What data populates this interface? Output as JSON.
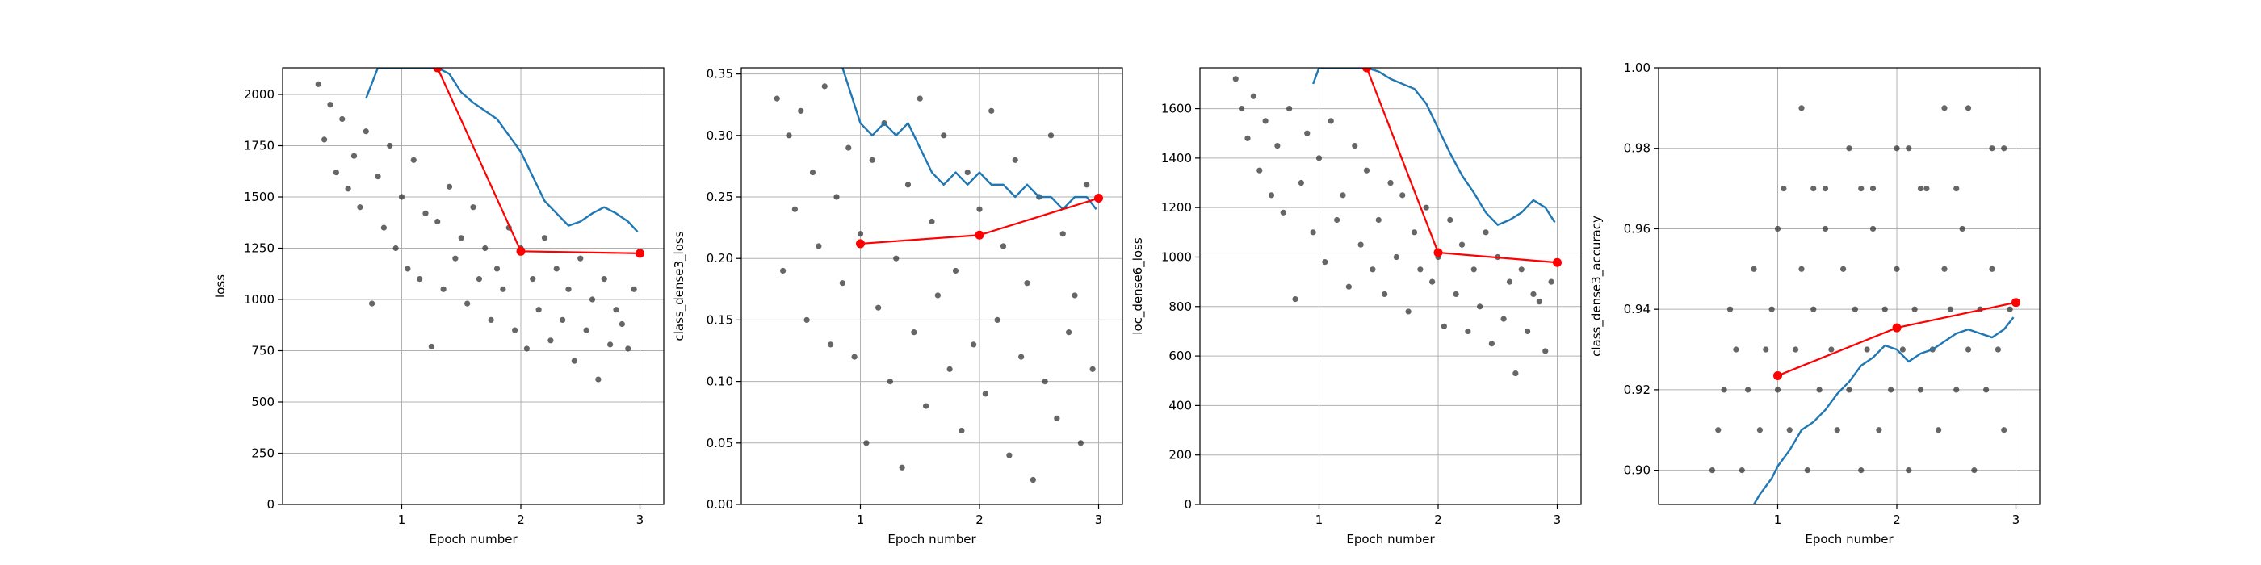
{
  "figure_title": "",
  "chart_data": [
    {
      "type": "scatter",
      "xlabel": "Epoch number",
      "ylabel": "loss",
      "xlim": [
        0,
        3.2
      ],
      "ylim": [
        0,
        2130
      ],
      "xticks": [
        "1",
        "2",
        "3"
      ],
      "yticks": [
        "0",
        "250",
        "500",
        "750",
        "1000",
        "1250",
        "1500",
        "1750",
        "2000"
      ],
      "grid": true,
      "series": [
        {
          "kind": "scatter",
          "description_color": "#404040",
          "x": [
            0.3,
            0.35,
            0.4,
            0.45,
            0.5,
            0.55,
            0.6,
            0.65,
            0.7,
            0.75,
            0.8,
            0.85,
            0.9,
            0.95,
            1.0,
            1.05,
            1.1,
            1.15,
            1.2,
            1.25,
            1.3,
            1.35,
            1.4,
            1.45,
            1.5,
            1.55,
            1.6,
            1.65,
            1.7,
            1.75,
            1.8,
            1.85,
            1.9,
            1.95,
            2.0,
            2.05,
            2.1,
            2.15,
            2.2,
            2.25,
            2.3,
            2.35,
            2.4,
            2.45,
            2.5,
            2.55,
            2.6,
            2.65,
            2.7,
            2.75,
            2.8,
            2.85,
            2.9,
            2.95
          ],
          "y": [
            2050,
            1780,
            1950,
            1620,
            1880,
            1540,
            1700,
            1450,
            1820,
            980,
            1600,
            1350,
            1750,
            1250,
            1500,
            1150,
            1680,
            1100,
            1420,
            770,
            1380,
            1050,
            1550,
            1200,
            1300,
            980,
            1450,
            1100,
            1250,
            900,
            1150,
            1050,
            1350,
            850,
            1250,
            760,
            1100,
            950,
            1300,
            800,
            1150,
            900,
            1050,
            700,
            1200,
            850,
            1000,
            610,
            1100,
            780,
            950,
            880,
            760,
            1050
          ]
        },
        {
          "kind": "line",
          "color": "#1f77b4",
          "x": [
            0.7,
            0.8,
            0.9,
            1.0,
            1.1,
            1.2,
            1.3,
            1.4,
            1.5,
            1.6,
            1.7,
            1.8,
            1.9,
            2.0,
            2.1,
            2.2,
            2.3,
            2.4,
            2.5,
            2.6,
            2.7,
            2.8,
            2.9,
            2.98
          ],
          "y": [
            1980,
            2130,
            2130,
            2130,
            2130,
            2130,
            2130,
            2100,
            2010,
            1960,
            1920,
            1880,
            1800,
            1720,
            1600,
            1480,
            1420,
            1360,
            1380,
            1420,
            1450,
            1420,
            1380,
            1330
          ]
        },
        {
          "kind": "line-markers",
          "color": "#ff0000",
          "x": [
            1.3,
            2.0,
            3.0
          ],
          "y": [
            2130,
            1235,
            1225
          ]
        }
      ]
    },
    {
      "type": "scatter",
      "xlabel": "Epoch number",
      "ylabel": "class_dense3_loss",
      "xlim": [
        0,
        3.2
      ],
      "ylim": [
        0,
        0.355
      ],
      "xticks": [
        "1",
        "2",
        "3"
      ],
      "yticks": [
        "0.00",
        "0.05",
        "0.10",
        "0.15",
        "0.20",
        "0.25",
        "0.30",
        "0.35"
      ],
      "grid": true,
      "series": [
        {
          "kind": "scatter",
          "description_color": "#404040",
          "x": [
            0.3,
            0.35,
            0.4,
            0.45,
            0.5,
            0.55,
            0.6,
            0.65,
            0.7,
            0.75,
            0.8,
            0.85,
            0.9,
            0.95,
            1.0,
            1.05,
            1.1,
            1.15,
            1.2,
            1.25,
            1.3,
            1.35,
            1.4,
            1.45,
            1.5,
            1.55,
            1.6,
            1.65,
            1.7,
            1.75,
            1.8,
            1.85,
            1.9,
            1.95,
            2.0,
            2.05,
            2.1,
            2.15,
            2.2,
            2.25,
            2.3,
            2.35,
            2.4,
            2.45,
            2.5,
            2.55,
            2.6,
            2.65,
            2.7,
            2.75,
            2.8,
            2.85,
            2.9,
            2.95
          ],
          "y": [
            0.33,
            0.19,
            0.3,
            0.24,
            0.32,
            0.15,
            0.27,
            0.21,
            0.34,
            0.13,
            0.25,
            0.18,
            0.29,
            0.12,
            0.22,
            0.05,
            0.28,
            0.16,
            0.31,
            0.1,
            0.2,
            0.03,
            0.26,
            0.14,
            0.33,
            0.08,
            0.23,
            0.17,
            0.3,
            0.11,
            0.19,
            0.06,
            0.27,
            0.13,
            0.24,
            0.09,
            0.32,
            0.15,
            0.21,
            0.04,
            0.28,
            0.12,
            0.18,
            0.02,
            0.25,
            0.1,
            0.3,
            0.07,
            0.22,
            0.14,
            0.17,
            0.05,
            0.26,
            0.11
          ]
        },
        {
          "kind": "line",
          "color": "#1f77b4",
          "x": [
            0.85,
            0.9,
            1.0,
            1.1,
            1.2,
            1.3,
            1.4,
            1.5,
            1.6,
            1.7,
            1.8,
            1.9,
            2.0,
            2.1,
            2.2,
            2.3,
            2.4,
            2.5,
            2.6,
            2.7,
            2.8,
            2.9,
            2.98
          ],
          "y": [
            0.355,
            0.34,
            0.31,
            0.3,
            0.31,
            0.3,
            0.31,
            0.29,
            0.27,
            0.26,
            0.27,
            0.26,
            0.27,
            0.26,
            0.26,
            0.25,
            0.26,
            0.25,
            0.25,
            0.24,
            0.25,
            0.25,
            0.24
          ]
        },
        {
          "kind": "line-markers",
          "color": "#ff0000",
          "x": [
            1.0,
            2.0,
            3.0
          ],
          "y": [
            0.212,
            0.219,
            0.249
          ]
        }
      ]
    },
    {
      "type": "scatter",
      "xlabel": "Epoch number",
      "ylabel": "loc_dense6_loss",
      "xlim": [
        0,
        3.2
      ],
      "ylim": [
        0,
        1765
      ],
      "xticks": [
        "1",
        "2",
        "3"
      ],
      "yticks": [
        "0",
        "200",
        "400",
        "600",
        "800",
        "1000",
        "1200",
        "1400",
        "1600"
      ],
      "grid": true,
      "series": [
        {
          "kind": "scatter",
          "description_color": "#404040",
          "x": [
            0.3,
            0.35,
            0.4,
            0.45,
            0.5,
            0.55,
            0.6,
            0.65,
            0.7,
            0.75,
            0.8,
            0.85,
            0.9,
            0.95,
            1.0,
            1.05,
            1.1,
            1.15,
            1.2,
            1.25,
            1.3,
            1.35,
            1.4,
            1.45,
            1.5,
            1.55,
            1.6,
            1.65,
            1.7,
            1.75,
            1.8,
            1.85,
            1.9,
            1.95,
            2.0,
            2.05,
            2.1,
            2.15,
            2.2,
            2.25,
            2.3,
            2.35,
            2.4,
            2.45,
            2.5,
            2.55,
            2.6,
            2.65,
            2.7,
            2.75,
            2.8,
            2.85,
            2.9,
            2.95
          ],
          "y": [
            1720,
            1600,
            1480,
            1650,
            1350,
            1550,
            1250,
            1450,
            1180,
            1600,
            830,
            1300,
            1500,
            1100,
            1400,
            980,
            1550,
            1150,
            1250,
            880,
            1450,
            1050,
            1350,
            950,
            1150,
            850,
            1300,
            1000,
            1250,
            780,
            1100,
            950,
            1200,
            900,
            1000,
            720,
            1150,
            850,
            1050,
            700,
            950,
            800,
            1100,
            650,
            1000,
            750,
            900,
            530,
            950,
            700,
            850,
            820,
            620,
            900
          ]
        },
        {
          "kind": "line",
          "color": "#1f77b4",
          "x": [
            0.95,
            1.0,
            1.1,
            1.2,
            1.3,
            1.4,
            1.5,
            1.6,
            1.7,
            1.8,
            1.9,
            2.0,
            2.1,
            2.2,
            2.3,
            2.4,
            2.5,
            2.6,
            2.7,
            2.8,
            2.9,
            2.98
          ],
          "y": [
            1700,
            1765,
            1765,
            1765,
            1765,
            1765,
            1750,
            1720,
            1700,
            1680,
            1620,
            1520,
            1420,
            1330,
            1260,
            1180,
            1130,
            1150,
            1180,
            1230,
            1200,
            1140
          ]
        },
        {
          "kind": "line-markers",
          "color": "#ff0000",
          "x": [
            1.4,
            2.0,
            3.0
          ],
          "y": [
            1765,
            1018,
            978
          ]
        }
      ]
    },
    {
      "type": "scatter",
      "xlabel": "Epoch number",
      "ylabel": "class_dense3_accuracy",
      "xlim": [
        0,
        3.2
      ],
      "ylim": [
        0.8915,
        1.0
      ],
      "xticks": [
        "1",
        "2",
        "3"
      ],
      "yticks": [
        "0.90",
        "0.92",
        "0.94",
        "0.96",
        "0.98",
        "1.00"
      ],
      "grid": true,
      "series": [
        {
          "kind": "scatter",
          "description_color": "#404040",
          "x": [
            0.45,
            0.5,
            0.55,
            0.6,
            0.65,
            0.7,
            0.75,
            0.8,
            0.85,
            0.9,
            0.95,
            1.0,
            1.05,
            1.1,
            1.15,
            1.2,
            1.25,
            1.3,
            1.35,
            1.4,
            1.45,
            1.5,
            1.55,
            1.6,
            1.65,
            1.7,
            1.75,
            1.8,
            1.85,
            1.9,
            1.95,
            2.0,
            2.05,
            2.1,
            2.15,
            2.2,
            2.25,
            2.3,
            2.35,
            2.4,
            2.45,
            2.5,
            2.55,
            2.6,
            2.65,
            2.7,
            2.75,
            2.8,
            2.85,
            2.9,
            2.95,
            1.2,
            1.4,
            1.6,
            1.8,
            2.0,
            2.2,
            2.4,
            2.6,
            2.8,
            1.0,
            1.3,
            1.7,
            2.1,
            2.5,
            2.9
          ],
          "y": [
            0.9,
            0.91,
            0.92,
            0.94,
            0.93,
            0.9,
            0.92,
            0.95,
            0.91,
            0.93,
            0.94,
            0.92,
            0.97,
            0.91,
            0.93,
            0.95,
            0.9,
            0.94,
            0.92,
            0.96,
            0.93,
            0.91,
            0.95,
            0.92,
            0.94,
            0.9,
            0.93,
            0.96,
            0.91,
            0.94,
            0.92,
            0.95,
            0.93,
            0.9,
            0.94,
            0.92,
            0.97,
            0.93,
            0.91,
            0.95,
            0.94,
            0.92,
            0.96,
            0.93,
            0.9,
            0.94,
            0.92,
            0.95,
            0.93,
            0.91,
            0.94,
            0.99,
            0.97,
            0.98,
            0.97,
            0.98,
            0.97,
            0.99,
            0.99,
            0.98,
            0.96,
            0.97,
            0.97,
            0.98,
            0.97,
            0.98
          ]
        },
        {
          "kind": "line",
          "color": "#1f77b4",
          "x": [
            0.8,
            0.85,
            0.9,
            0.95,
            1.0,
            1.1,
            1.2,
            1.3,
            1.4,
            1.5,
            1.6,
            1.7,
            1.8,
            1.9,
            2.0,
            2.1,
            2.2,
            2.3,
            2.4,
            2.5,
            2.6,
            2.7,
            2.8,
            2.9,
            2.98
          ],
          "y": [
            0.8915,
            0.894,
            0.896,
            0.898,
            0.901,
            0.905,
            0.91,
            0.912,
            0.915,
            0.919,
            0.922,
            0.926,
            0.928,
            0.931,
            0.93,
            0.927,
            0.929,
            0.93,
            0.932,
            0.934,
            0.935,
            0.934,
            0.933,
            0.935,
            0.938
          ]
        },
        {
          "kind": "line-markers",
          "color": "#ff0000",
          "x": [
            1.0,
            2.0,
            3.0
          ],
          "y": [
            0.9235,
            0.9354,
            0.9417
          ]
        }
      ]
    }
  ]
}
